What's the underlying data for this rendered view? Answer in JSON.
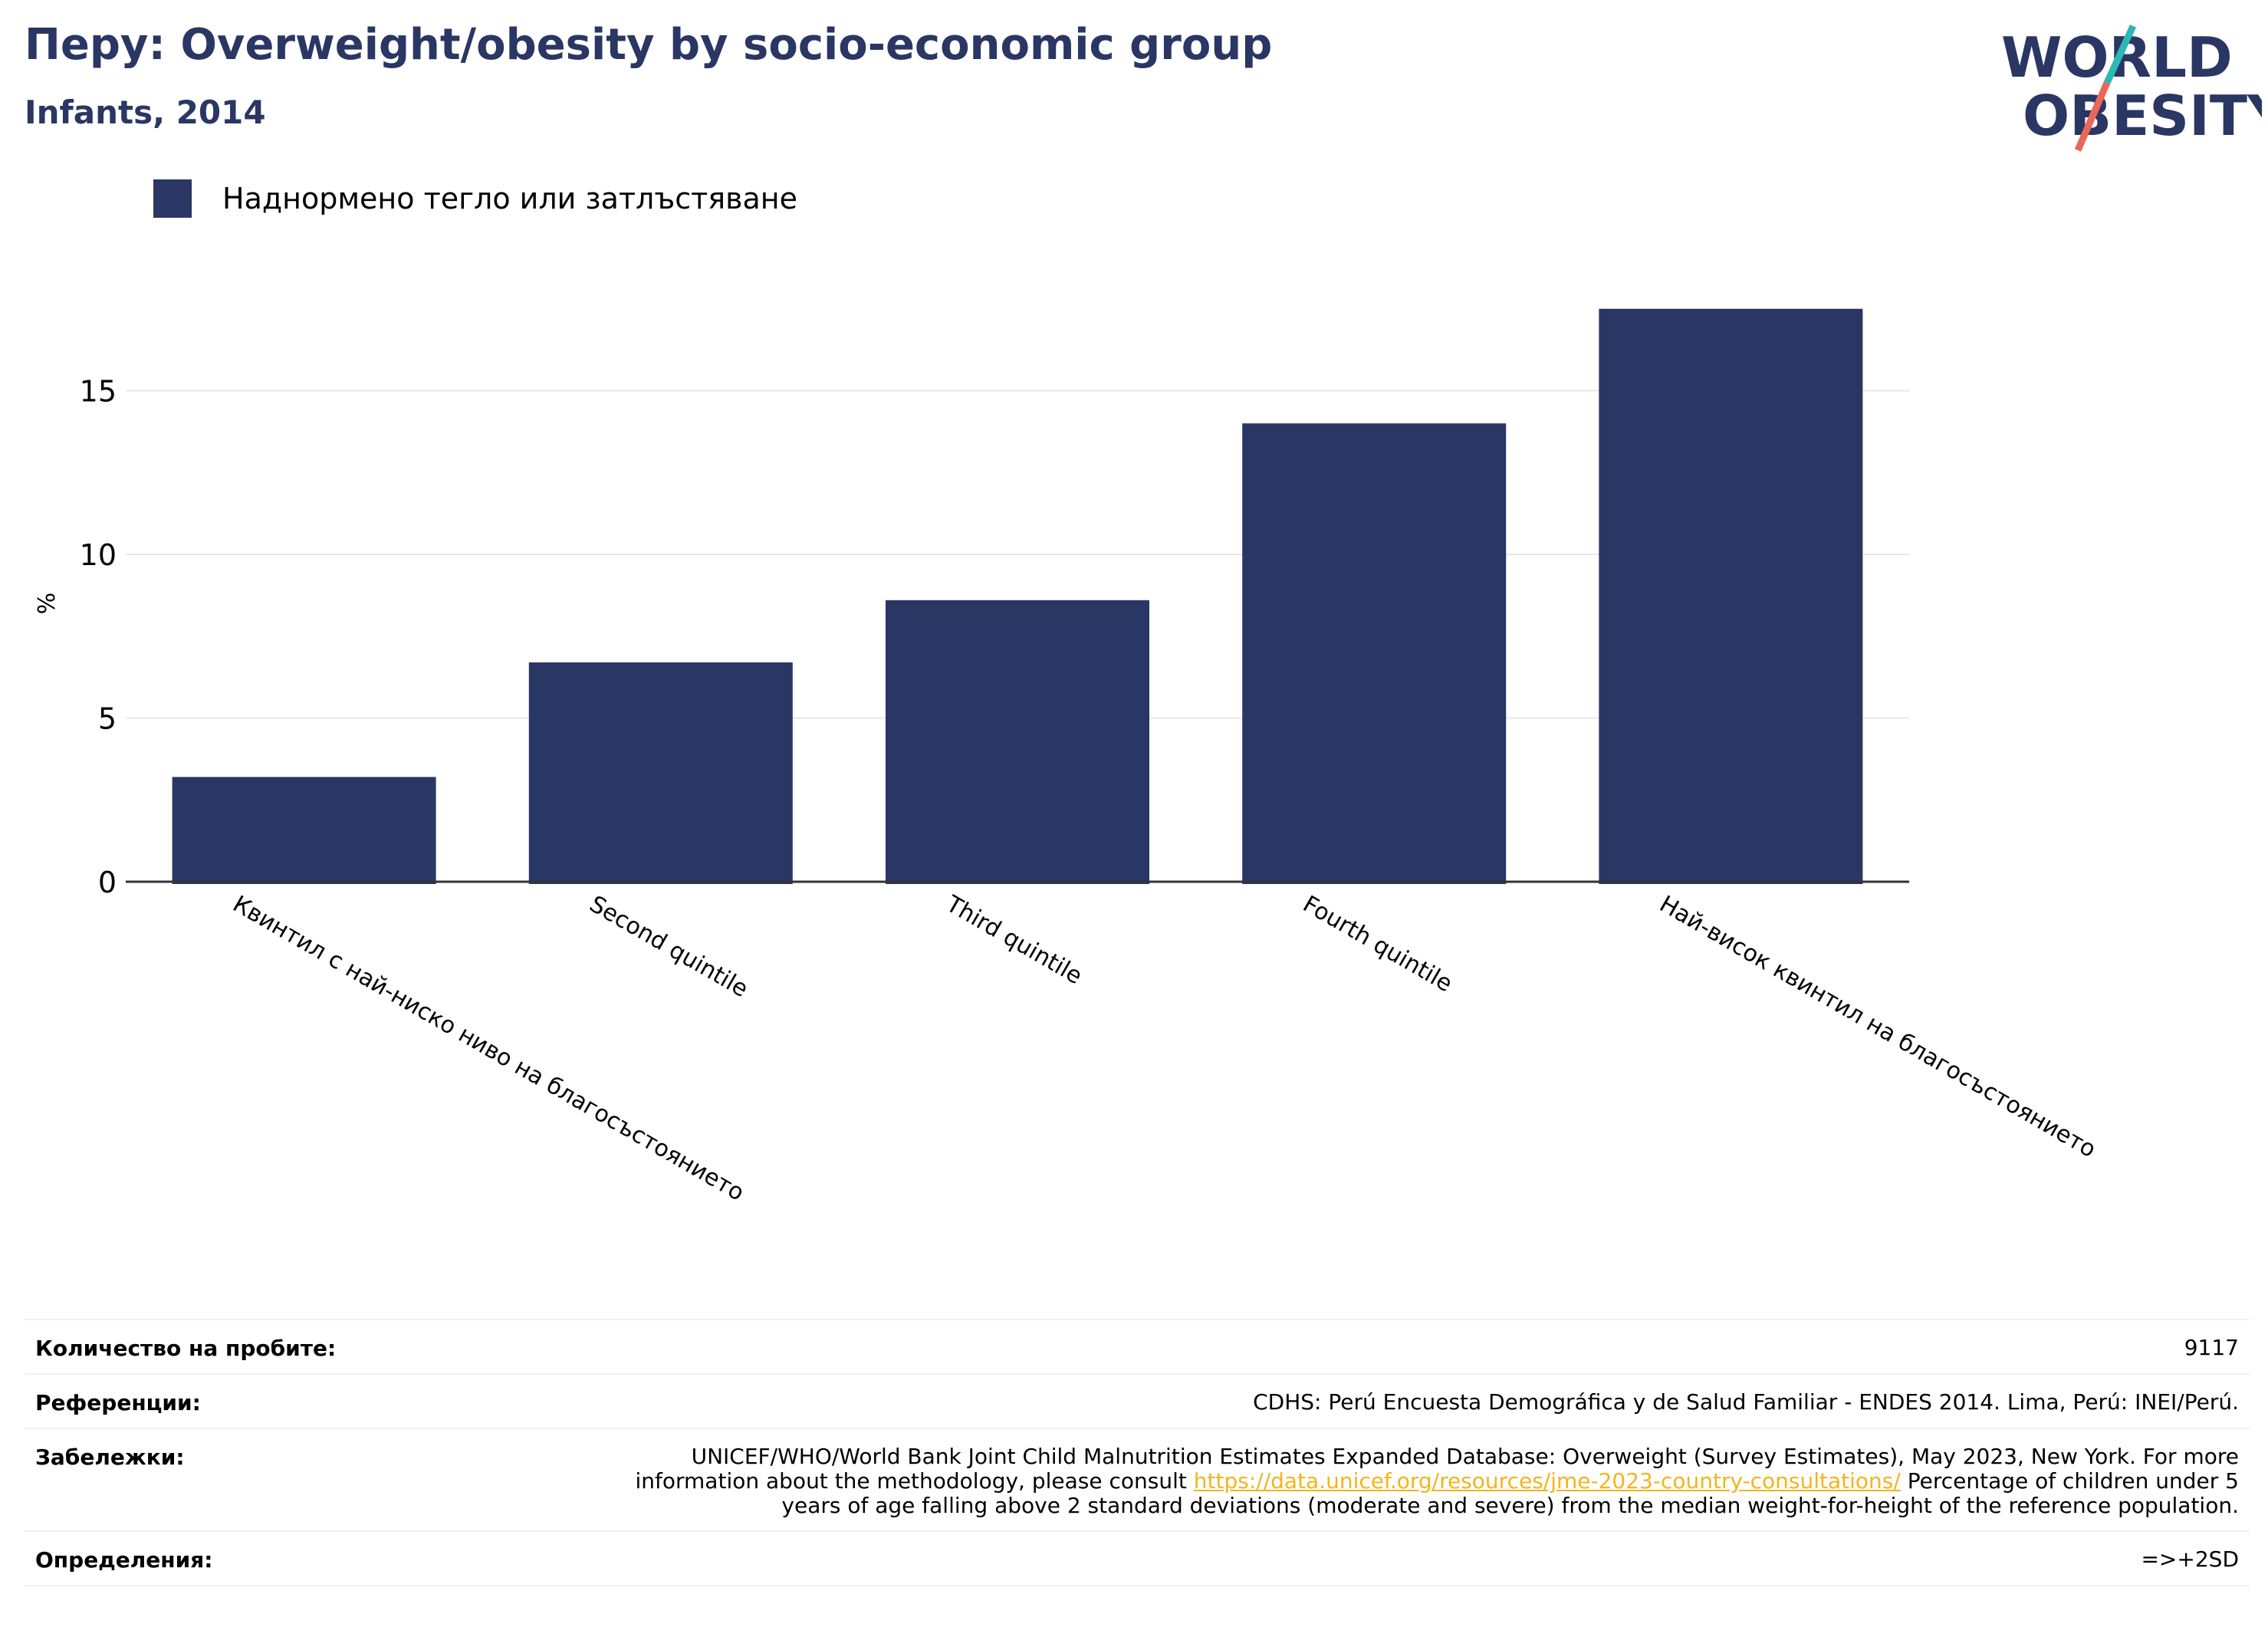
{
  "header": {
    "title": "Перу: Overweight/obesity by socio-economic group",
    "subtitle": "Infants, 2014"
  },
  "logo": {
    "line1": "WORLD",
    "line2": "OBESITY",
    "colors": {
      "text": "#2a3663",
      "slash_top": "#2cb8b3",
      "slash_bottom": "#e8685a"
    }
  },
  "legend": {
    "label": "Наднормено тегло или затлъстяване",
    "color": "#2a3663"
  },
  "chart_data": {
    "type": "bar",
    "categories": [
      "Квинтил с най-ниско ниво на благосъстоянието",
      "Second quintile",
      "Third quintile",
      "Fourth quintile",
      "Най-висок квинтил на благосъстоянието"
    ],
    "series": [
      {
        "name": "Наднормено тегло или затлъстяване",
        "values": [
          3.2,
          6.7,
          8.6,
          14.0,
          17.5
        ],
        "color": "#2a3663"
      }
    ],
    "ylabel": "%",
    "yticks": [
      "0",
      "5",
      "10",
      "15"
    ],
    "ylim": [
      0,
      19
    ],
    "grid": true,
    "legend_position": "top-left"
  },
  "info": {
    "sample_label": "Количество на пробите:",
    "sample_value": "9117",
    "references_label": "Референции:",
    "references_value": "CDHS: Perú Encuesta Demográfica y de Salud Familiar - ENDES 2014. Lima, Perú: INEI/Perú.",
    "notes_label": "Забележки:",
    "notes_text_before": "UNICEF/WHO/World Bank Joint Child Malnutrition Estimates Expanded Database: Overweight (Survey Estimates), May 2023, New York. For more information about the methodology, please consult ",
    "notes_link": "https://data.unicef.org/resources/jme-2023-country-consultations/",
    "notes_text_after": " Percentage of children under 5 years of age falling above 2 standard deviations (moderate and severe) from the median weight-for-height of the reference population.",
    "definitions_label": "Определения:",
    "definitions_value": "=>+2SD"
  }
}
